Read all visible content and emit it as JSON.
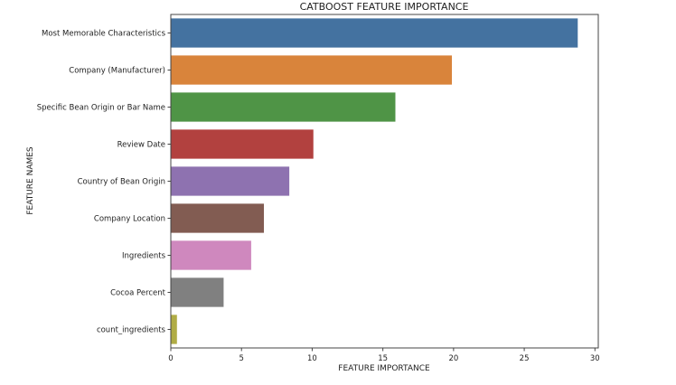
{
  "chart_data": {
    "type": "bar",
    "orientation": "horizontal",
    "title": "CATBOOST FEATURE IMPORTANCE",
    "xlabel": "FEATURE IMPORTANCE",
    "ylabel": "FEATURE NAMES",
    "xlim": [
      0,
      30
    ],
    "xticks": [
      "0",
      "5",
      "10",
      "15",
      "20",
      "25",
      "30"
    ],
    "grid": false,
    "categories": [
      "Most Memorable Characteristics",
      "Company (Manufacturer)",
      "Specific Bean Origin or Bar Name",
      "Review Date",
      "Country of Bean Origin",
      "Company Location",
      "Ingredients",
      "Cocoa Percent",
      "count_ingredients"
    ],
    "values": [
      28.8,
      19.9,
      15.9,
      10.1,
      8.4,
      6.6,
      5.7,
      3.75,
      0.45
    ],
    "colors": [
      "#4472a0",
      "#d9843b",
      "#4f9446",
      "#b2413f",
      "#8e72b0",
      "#825c52",
      "#cf88be",
      "#808080",
      "#b0ac45"
    ]
  }
}
